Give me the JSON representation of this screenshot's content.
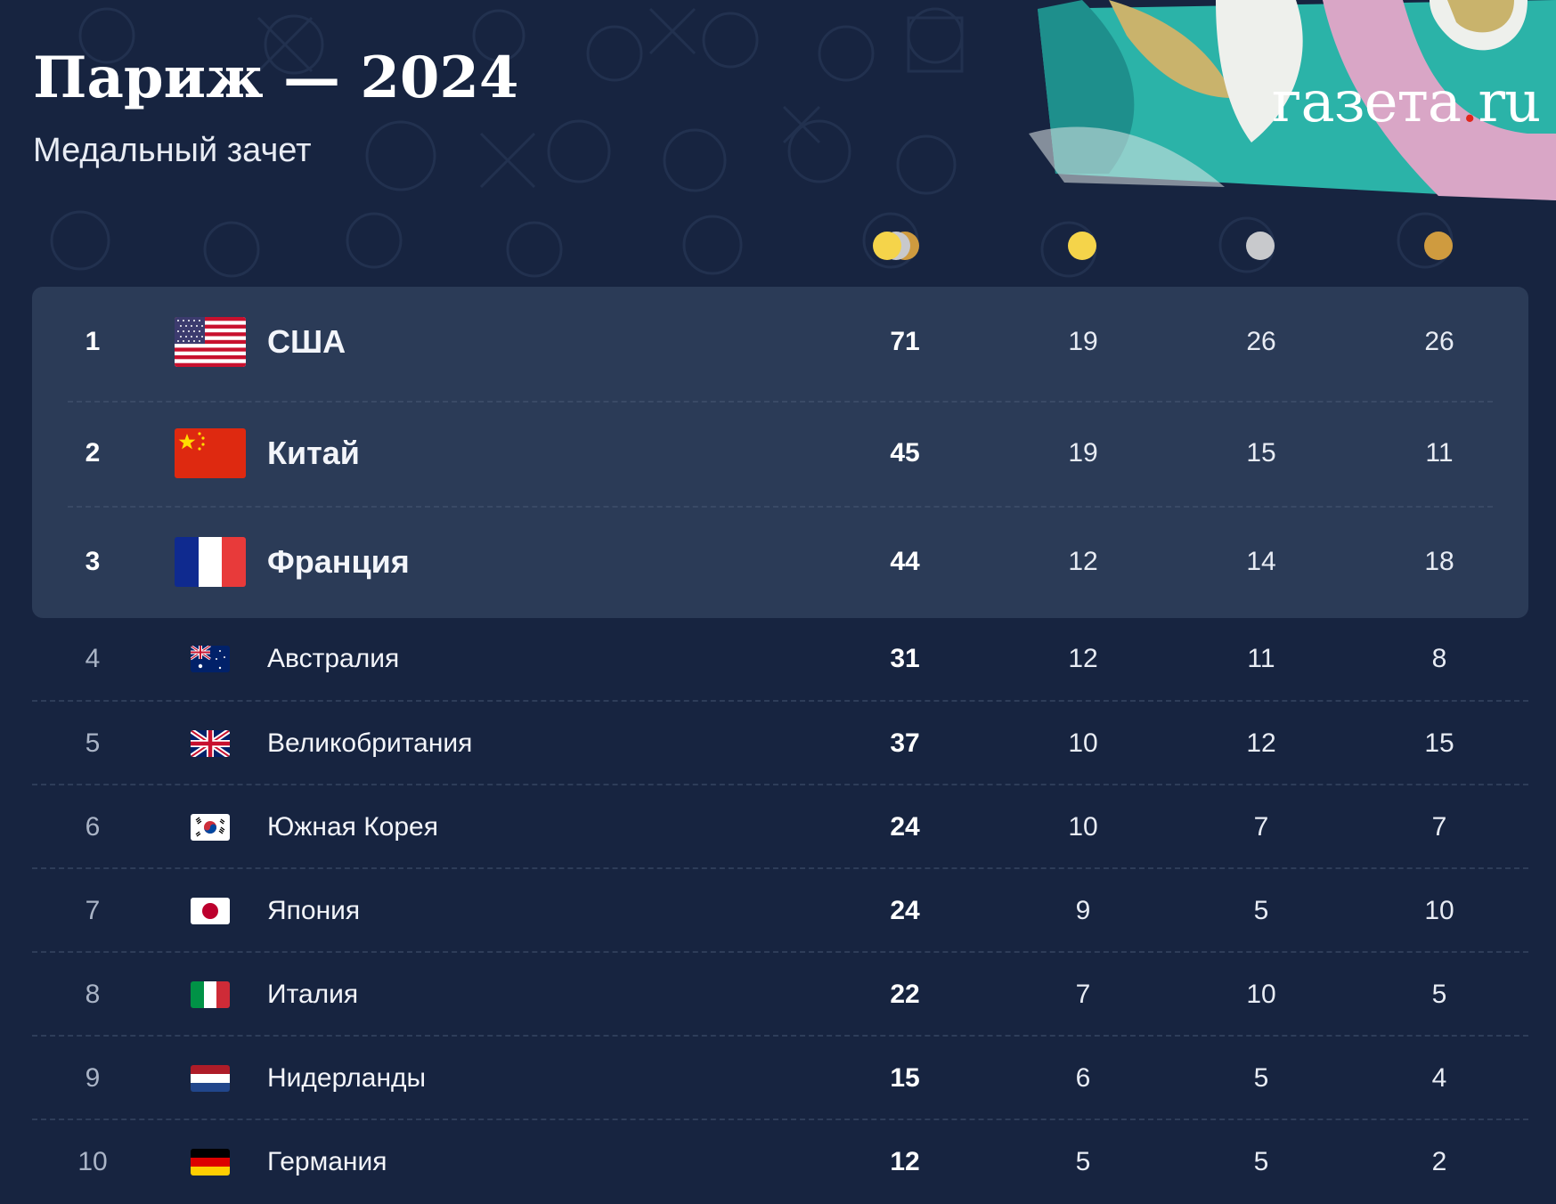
{
  "header": {
    "title": "Париж — 2024",
    "subtitle": "Медальный зачет",
    "logo_main": "газета",
    "logo_dot": ".",
    "logo_tld": "ru"
  },
  "columns": [
    {
      "name": "total",
      "icon": "medals-total-icon"
    },
    {
      "name": "gold",
      "icon": "gold-medal-icon",
      "color": "#f5d44a"
    },
    {
      "name": "silver",
      "icon": "silver-medal-icon",
      "color": "#c8c9cc"
    },
    {
      "name": "bronze",
      "icon": "bronze-medal-icon",
      "color": "#cf9b3f"
    }
  ],
  "rows": [
    {
      "rank": "1",
      "country": "США",
      "flag": "usa-flag-icon",
      "total": "71",
      "gold": "19",
      "silver": "26",
      "bronze": "26"
    },
    {
      "rank": "2",
      "country": "Китай",
      "flag": "china-flag-icon",
      "total": "45",
      "gold": "19",
      "silver": "15",
      "bronze": "11"
    },
    {
      "rank": "3",
      "country": "Франция",
      "flag": "france-flag-icon",
      "total": "44",
      "gold": "12",
      "silver": "14",
      "bronze": "18"
    },
    {
      "rank": "4",
      "country": "Австралия",
      "flag": "australia-flag-icon",
      "total": "31",
      "gold": "12",
      "silver": "11",
      "bronze": "8"
    },
    {
      "rank": "5",
      "country": "Великобритания",
      "flag": "uk-flag-icon",
      "total": "37",
      "gold": "10",
      "silver": "12",
      "bronze": "15"
    },
    {
      "rank": "6",
      "country": "Южная Корея",
      "flag": "south-korea-flag-icon",
      "total": "24",
      "gold": "10",
      "silver": "7",
      "bronze": "7"
    },
    {
      "rank": "7",
      "country": "Япония",
      "flag": "japan-flag-icon",
      "total": "24",
      "gold": "9",
      "silver": "5",
      "bronze": "10"
    },
    {
      "rank": "8",
      "country": "Италия",
      "flag": "italy-flag-icon",
      "total": "22",
      "gold": "7",
      "silver": "10",
      "bronze": "5"
    },
    {
      "rank": "9",
      "country": "Нидерланды",
      "flag": "netherlands-flag-icon",
      "total": "15",
      "gold": "6",
      "silver": "5",
      "bronze": "4"
    },
    {
      "rank": "10",
      "country": "Германия",
      "flag": "germany-flag-icon",
      "total": "12",
      "gold": "5",
      "silver": "5",
      "bronze": "2"
    }
  ]
}
